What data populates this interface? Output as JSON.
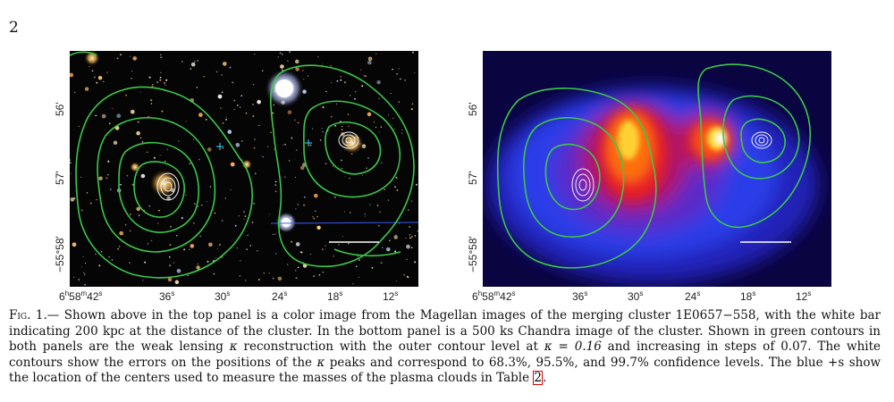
{
  "page_number": "2",
  "figure": {
    "y_ticks": [
      "56'",
      "57'",
      "−55°58'"
    ],
    "x_ticks_first": {
      "h": "6",
      "m": "58",
      "s": "42"
    },
    "x_ticks": [
      "36",
      "30",
      "24",
      "18",
      "12"
    ],
    "sec_suffix": "s",
    "h_suffix": "h",
    "m_suffix": "m",
    "left_panel_name": "Magellan optical image",
    "right_panel_name": "Chandra X-ray image",
    "contour_color": "#3cc84a",
    "error_contour_color": "#f0f0f0",
    "center_marker_color": "#33b9e6"
  },
  "caption": {
    "label": "Fig. 1.",
    "dash": "—",
    "text_1": " Shown above in the top panel is a color image from the Magellan images of the merging cluster 1E0657−558, with the white bar indicating 200 kpc at the distance of the cluster. In the bottom panel is a 500 ks Chandra image of the cluster. Shown in green contours in both panels are the weak lensing ",
    "kappa": "κ",
    "text_2": " reconstruction with the outer contour level at ",
    "eq": "κ = 0.16",
    "text_3": " and increasing in steps of 0.07. The white contours show the errors on the positions of the ",
    "text_4": " peaks and correspond to 68.3%, 95.5%, and 99.7% confidence levels. The blue +s show the location of the centers used to measure the masses of the plasma clouds in Table ",
    "table_ref": "2",
    "end": "."
  }
}
